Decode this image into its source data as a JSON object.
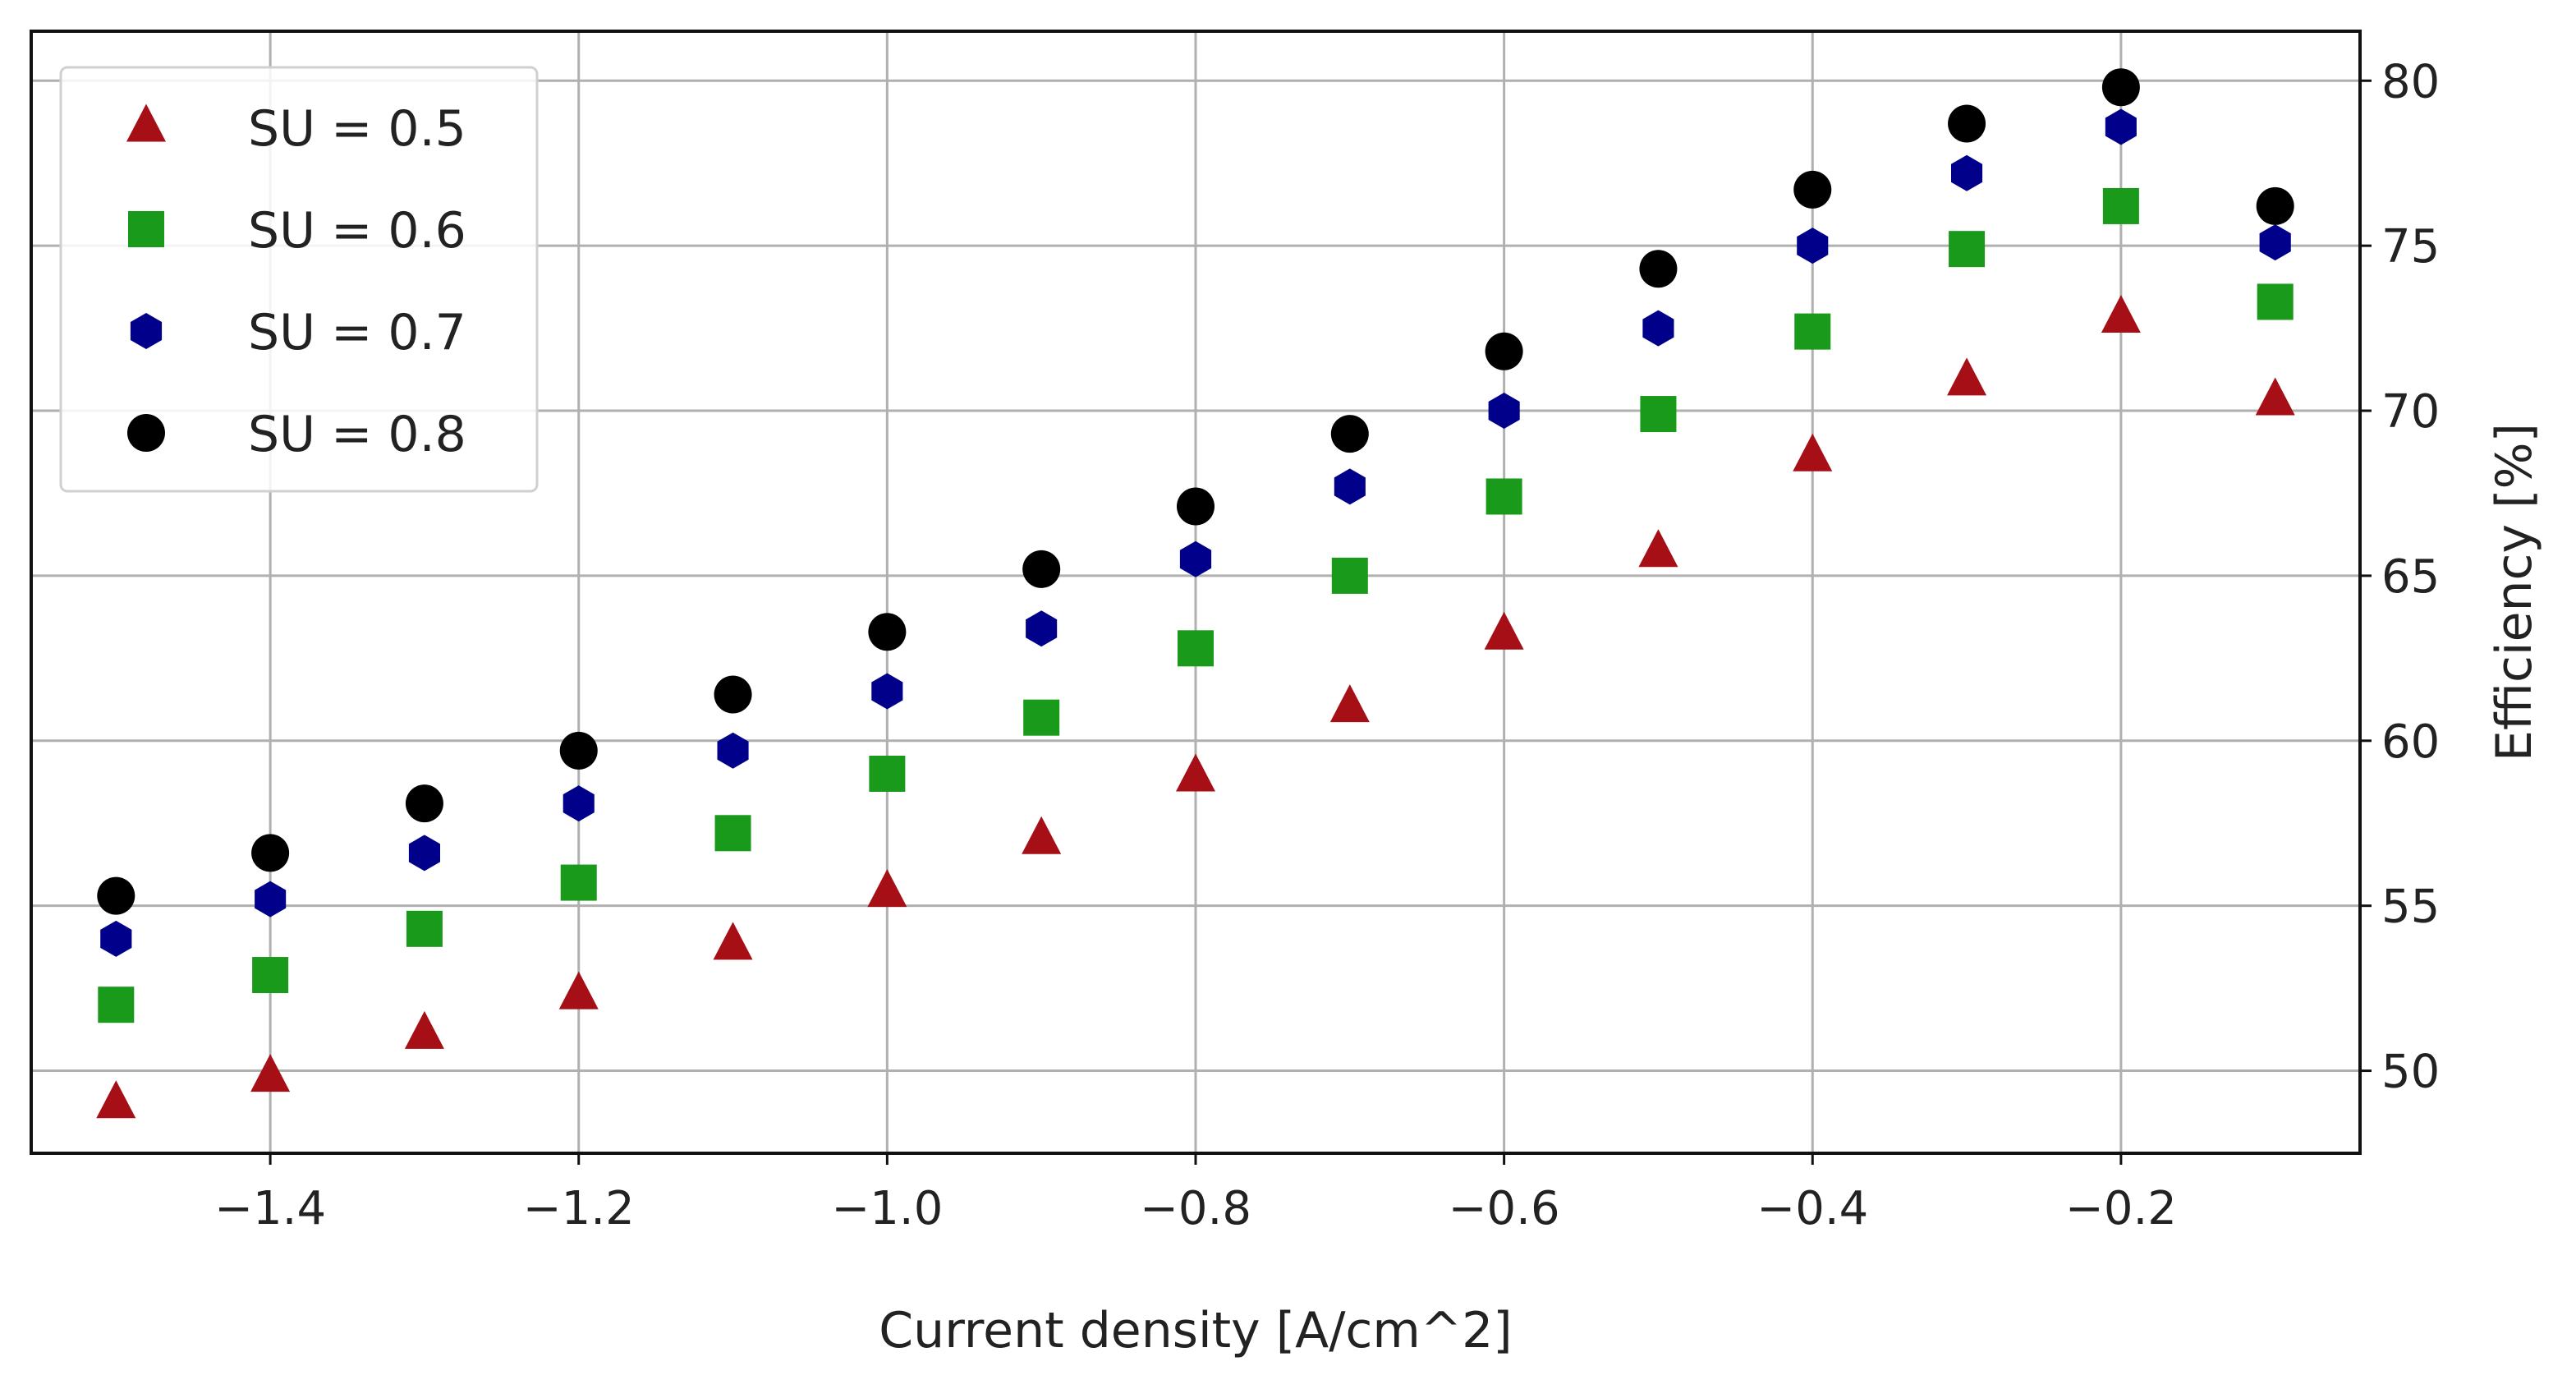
{
  "chart_data": {
    "type": "scatter",
    "title": "",
    "xlabel": "Current density [A/cm^2]",
    "ylabel": "Efficiency [%]",
    "y_axis_side": "right",
    "xlim": [
      -1.555,
      -0.045
    ],
    "ylim": [
      47.5,
      81.5
    ],
    "xticks": [
      -1.4,
      -1.2,
      -1.0,
      -0.8,
      -0.6,
      -0.4,
      -0.2
    ],
    "xtick_labels": [
      "−1.4",
      "−1.2",
      "−1.0",
      "−0.8",
      "−0.6",
      "−0.4",
      "−0.2"
    ],
    "yticks": [
      50,
      55,
      60,
      65,
      70,
      75,
      80
    ],
    "ytick_labels": [
      "50",
      "55",
      "60",
      "65",
      "70",
      "75",
      "80"
    ],
    "grid": true,
    "legend_position": "top-left",
    "x": [
      -1.5,
      -1.4,
      -1.3,
      -1.2,
      -1.1,
      -1.0,
      -0.9,
      -0.8,
      -0.7,
      -0.6,
      -0.5,
      -0.4,
      -0.3,
      -0.2,
      -0.1
    ],
    "series": [
      {
        "name": "SU = 0.5",
        "marker": "triangle",
        "color": "#a50f15",
        "values": [
          49.0,
          49.8,
          51.1,
          52.3,
          53.8,
          55.4,
          57.0,
          58.9,
          61.0,
          63.2,
          65.7,
          68.6,
          70.9,
          72.8,
          70.3
        ]
      },
      {
        "name": "SU = 0.6",
        "marker": "square",
        "color": "#1a9a1a",
        "values": [
          52.0,
          52.9,
          54.3,
          55.7,
          57.2,
          59.0,
          60.7,
          62.8,
          65.0,
          67.4,
          69.9,
          72.4,
          74.9,
          76.2,
          73.3
        ]
      },
      {
        "name": "SU = 0.7",
        "marker": "hexagon",
        "color": "#00008b",
        "values": [
          54.0,
          55.2,
          56.6,
          58.1,
          59.7,
          61.5,
          63.4,
          65.5,
          67.7,
          70.0,
          72.5,
          75.0,
          77.2,
          78.6,
          75.1
        ]
      },
      {
        "name": "SU = 0.8",
        "marker": "circle",
        "color": "#000000",
        "values": [
          55.3,
          56.6,
          58.1,
          59.7,
          61.4,
          63.3,
          65.2,
          67.1,
          69.3,
          71.8,
          74.3,
          76.7,
          78.7,
          79.8,
          76.2
        ]
      }
    ]
  }
}
